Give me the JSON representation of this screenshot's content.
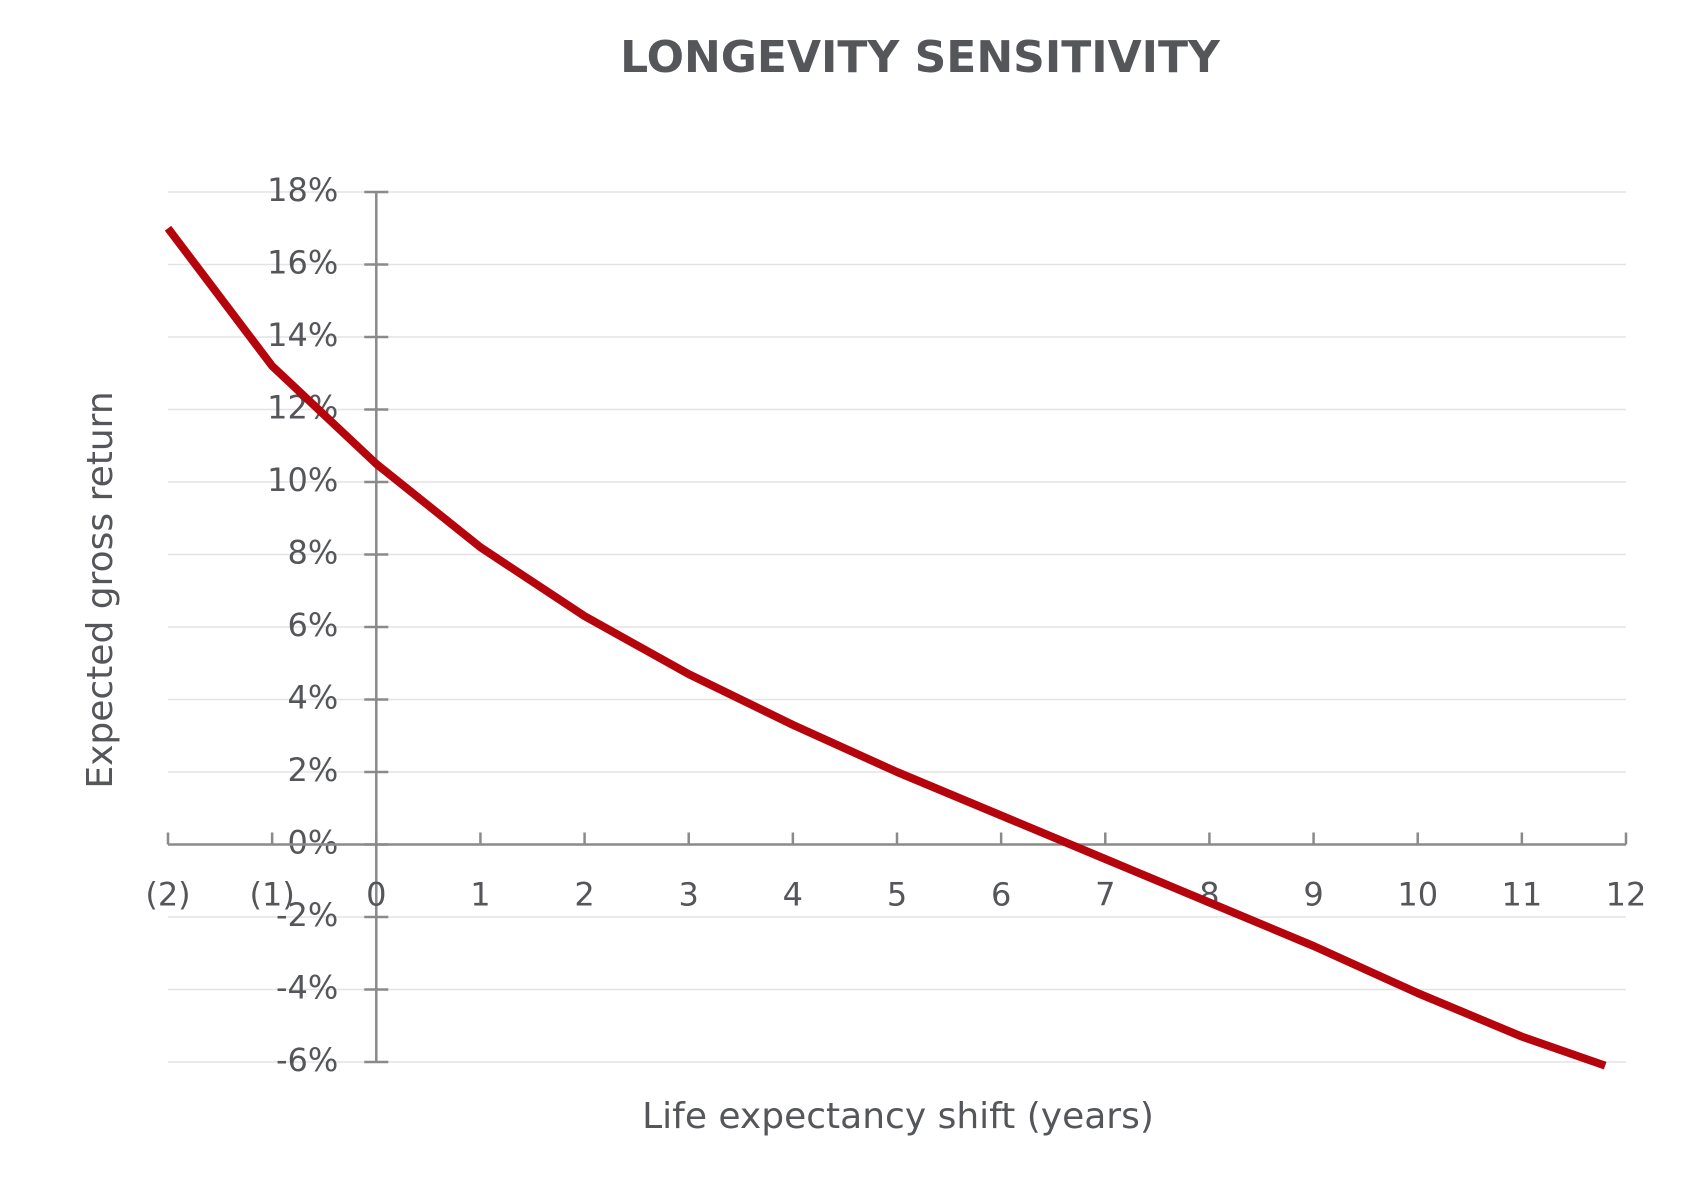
{
  "chart_data": {
    "type": "line",
    "title": "LONGEVITY SENSITIVITY",
    "xlabel": "Life expectancy shift (years)",
    "ylabel": "Expected gross return",
    "x": [
      -2,
      -1,
      0,
      1,
      2,
      3,
      4,
      5,
      6,
      7,
      8,
      9,
      10,
      11,
      11.8
    ],
    "values": [
      17.0,
      13.2,
      10.5,
      8.2,
      6.3,
      4.7,
      3.3,
      2.0,
      0.8,
      -0.4,
      -1.6,
      -2.8,
      -4.1,
      -5.3,
      -6.1
    ],
    "color": "#b5040c",
    "xlim": [
      -2,
      12
    ],
    "xticks": [
      {
        "value": -2,
        "label": "(2)"
      },
      {
        "value": -1,
        "label": "(1)"
      },
      0,
      1,
      2,
      3,
      4,
      5,
      6,
      7,
      8,
      9,
      10,
      11,
      12
    ],
    "ylim": [
      -6,
      18
    ],
    "yticks": [
      {
        "value": -6,
        "label": "-6%"
      },
      {
        "value": -4,
        "label": "-4%"
      },
      {
        "value": -2,
        "label": "-2%"
      },
      {
        "value": 0,
        "label": "0%"
      },
      {
        "value": 2,
        "label": "2%"
      },
      {
        "value": 4,
        "label": "4%"
      },
      {
        "value": 6,
        "label": "6%"
      },
      {
        "value": 8,
        "label": "8%"
      },
      {
        "value": 10,
        "label": "10%"
      },
      {
        "value": 12,
        "label": "12%"
      },
      {
        "value": 14,
        "label": "14%"
      },
      {
        "value": 16,
        "label": "16%"
      },
      {
        "value": 18,
        "label": "18%"
      }
    ],
    "grid": true
  }
}
